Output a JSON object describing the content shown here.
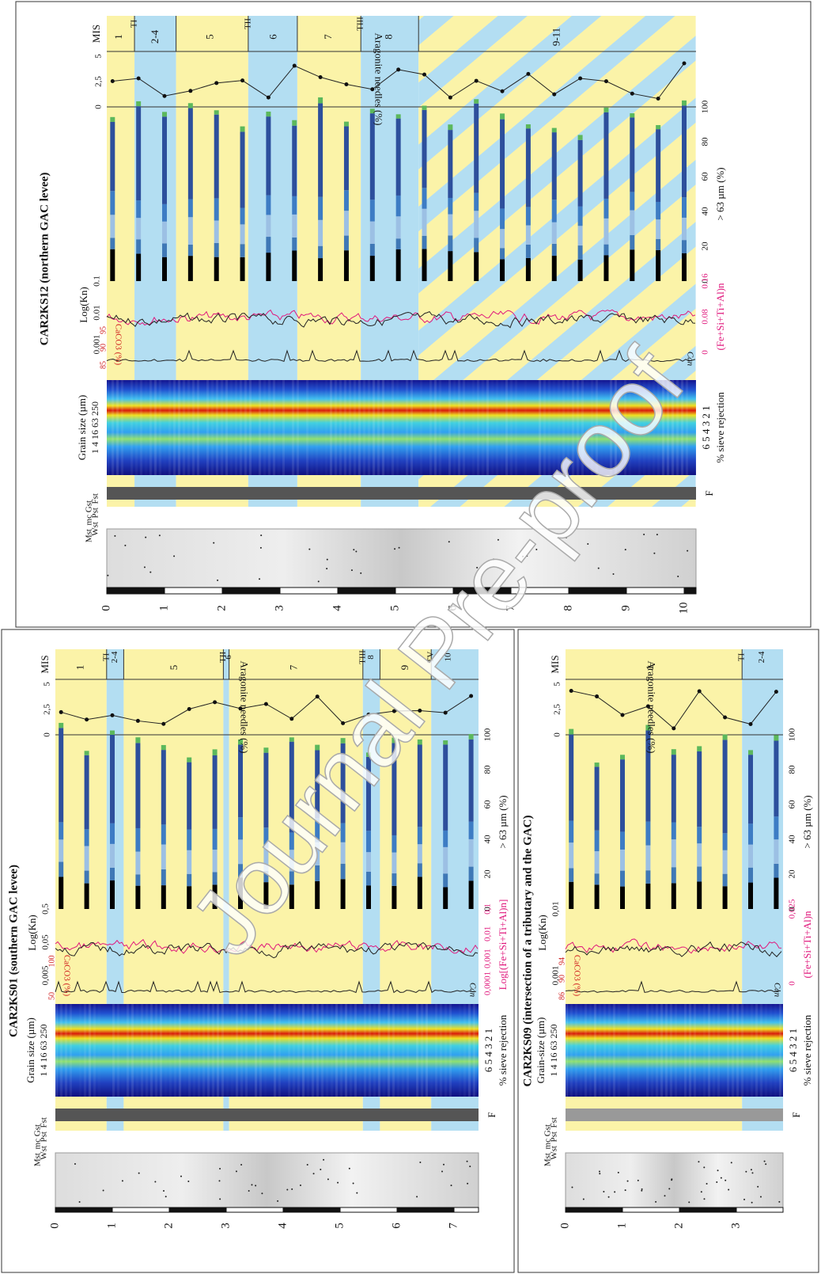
{
  "watermark": "Journal Pre-proof",
  "panels": [
    {
      "title": "CAR2KS12 (northern GAC levee)",
      "mis_label": "MIS",
      "stages": [
        "1",
        "TI",
        "2-4",
        "5",
        "TII",
        "6",
        "7",
        "TIII",
        "8",
        "9-11"
      ],
      "aragonite_title": "Aragonite needles (%)",
      "aragonite_ticks": [
        "0",
        "2,5",
        "5"
      ],
      "coarse_title": "> 63 µm (%)",
      "coarse_ticks": [
        "0",
        "20",
        "40",
        "60",
        "80",
        "100"
      ],
      "log_title": "Log(Kn)",
      "log_ticks": [
        "0.001",
        "0.01",
        "0.1"
      ],
      "elem_title": "(Fe+Si+Ti+Al)n",
      "elem_ticks": [
        "0",
        "0.08",
        "0.16"
      ],
      "caco3_title": "CaCO3 (%)",
      "caco3_ticks": [
        "85",
        "90",
        "95"
      ],
      "can_label": "Can",
      "grain_title": "Grain size (µm)",
      "grain_ticks": "1 4 16 63 250",
      "sieve_title": "% sieve rejection",
      "sieve_ticks": "6 5 4 3 2 1",
      "f_label": "F",
      "facies": [
        "Mst",
        "Wst",
        "mc",
        "Pst",
        "Gst",
        "Fst"
      ],
      "depth_ticks": [
        0,
        1,
        2,
        3,
        4,
        5,
        6,
        7,
        8,
        9,
        10
      ]
    },
    {
      "title": "CAR2KS01 (southern GAC levee)",
      "mis_label": "MIS",
      "stages": [
        "1",
        "TI",
        "2-4",
        "5",
        "TII",
        "6",
        "7",
        "TIII",
        "8",
        "9",
        "TV",
        "10"
      ],
      "aragonite_title": "Aragonite needles (%)",
      "aragonite_ticks": [
        "0",
        "2,5",
        "5"
      ],
      "coarse_title": "> 63 µm (%)",
      "coarse_ticks": [
        "0",
        "20",
        "40",
        "60",
        "80",
        "100"
      ],
      "log_title": "Log(Kn)",
      "log_ticks": [
        "0,005",
        "0,05",
        "0,5"
      ],
      "elem_title": "Log[(Fe+Si+Ti+Al)n]",
      "elem_ticks": [
        "0,0001",
        "0,001",
        "0,01",
        "0,1"
      ],
      "caco3_title": "CaCO3 (%)",
      "caco3_ticks": [
        "50",
        "100"
      ],
      "can_label": "Can",
      "grain_title": "Grain size (µm)",
      "grain_ticks": "1 4 16 63 250",
      "sieve_title": "% sieve rejection",
      "sieve_ticks": "6 5 4 3 2 1",
      "f_label": "F",
      "facies": [
        "Mst",
        "Wst",
        "mc",
        "Pst",
        "Gst",
        "Fst"
      ],
      "depth_ticks": [
        0,
        1,
        2,
        3,
        4,
        5,
        6,
        7
      ]
    },
    {
      "title": "CAR2KS09 (intersection of a tributary and the GAC)",
      "mis_label": "MIS",
      "stages": [
        "1",
        "TI",
        "2-4"
      ],
      "aragonite_title": "Aragonite needles (%)",
      "aragonite_ticks": [
        "0",
        "2,5",
        "5"
      ],
      "coarse_title": "> 63 µm (%)",
      "coarse_ticks": [
        "0",
        "20",
        "40",
        "60",
        "80",
        "100"
      ],
      "log_title": "Log(Kn)",
      "log_ticks": [
        "0,001",
        "0,01"
      ],
      "elem_title": "(Fe+Si+Ti+Al)n",
      "elem_ticks": [
        "0",
        "0,025"
      ],
      "caco3_title": "CaCO3 (%)",
      "caco3_ticks": [
        "86",
        "90",
        "94"
      ],
      "can_label": "Can",
      "grain_title": "Grain-size (µm)",
      "grain_ticks": "1 4 16 63 250",
      "sieve_title": "% sieve rejection",
      "sieve_ticks": "6 5 4 3 2 1",
      "f_label": "F",
      "facies": [
        "Mst",
        "Wst",
        "mc",
        "Pst",
        "Gst",
        "Fst"
      ],
      "depth_ticks": [
        0,
        1,
        2,
        3
      ]
    }
  ]
}
